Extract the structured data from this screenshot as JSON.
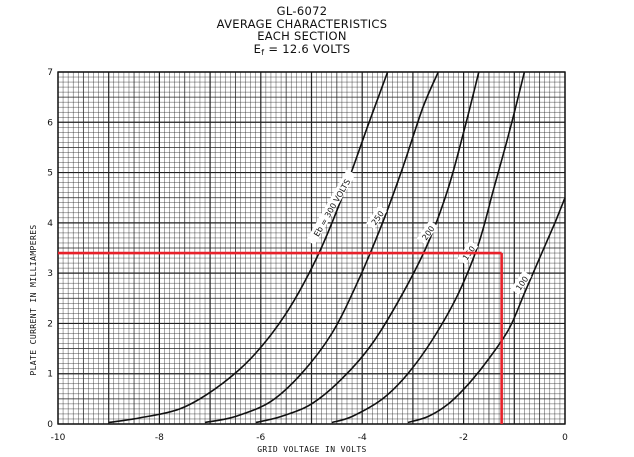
{
  "chart_data": {
    "type": "line",
    "title": "GL-6072",
    "subtitle_lines": [
      "AVERAGE CHARACTERISTICS",
      "EACH SECTION"
    ],
    "heater": {
      "main": "E",
      "sub": "f",
      "rest": " = 12.6 VOLTS"
    },
    "xlabel": "GRID VOLTAGE IN VOLTS",
    "ylabel": "PLATE CURRENT IN MILLIAMPERES",
    "xlim": [
      -10,
      0
    ],
    "ylim": [
      0,
      7
    ],
    "x_ticks": [
      "-10",
      "-8",
      "-6",
      "-4",
      "-2",
      "0"
    ],
    "y_ticks": [
      "0",
      "1",
      "2",
      "3",
      "4",
      "5",
      "6",
      "7"
    ],
    "grid": true,
    "series": [
      {
        "name": "Eb = 300 VOLTS",
        "color": "#111111",
        "x": [
          -9.0,
          -8.4,
          -7.6,
          -6.9,
          -6.2,
          -5.5,
          -4.9,
          -4.4,
          -3.9,
          -3.5
        ],
        "y": [
          0.03,
          0.12,
          0.3,
          0.7,
          1.3,
          2.2,
          3.3,
          4.5,
          5.9,
          7.0
        ]
      },
      {
        "name": "250",
        "color": "#111111",
        "x": [
          -7.1,
          -6.5,
          -5.8,
          -5.2,
          -4.6,
          -4.1,
          -3.6,
          -3.2,
          -2.8,
          -2.5
        ],
        "y": [
          0.03,
          0.15,
          0.45,
          1.0,
          1.8,
          2.8,
          4.0,
          5.1,
          6.3,
          7.0
        ]
      },
      {
        "name": "200",
        "color": "#111111",
        "x": [
          -6.1,
          -5.6,
          -5.0,
          -4.4,
          -3.8,
          -3.2,
          -2.7,
          -2.3,
          -2.0,
          -1.7
        ],
        "y": [
          0.03,
          0.15,
          0.4,
          0.9,
          1.6,
          2.6,
          3.6,
          4.7,
          5.8,
          7.0
        ]
      },
      {
        "name": "150",
        "color": "#111111",
        "x": [
          -4.6,
          -4.2,
          -3.6,
          -3.1,
          -2.6,
          -2.1,
          -1.7,
          -1.4,
          -1.1,
          -0.8
        ],
        "y": [
          0.03,
          0.15,
          0.5,
          1.0,
          1.7,
          2.6,
          3.6,
          4.7,
          5.8,
          7.0
        ]
      },
      {
        "name": "100",
        "color": "#111111",
        "x": [
          -3.1,
          -2.7,
          -2.3,
          -1.9,
          -1.5,
          -1.1,
          -0.8,
          -0.5,
          -0.2,
          0.0
        ],
        "y": [
          0.03,
          0.15,
          0.4,
          0.8,
          1.3,
          1.9,
          2.6,
          3.3,
          4.0,
          4.5
        ]
      }
    ],
    "curve_labels": [
      {
        "text": "Eb = 300 VOLTS",
        "x": -4.6,
        "y": 4.3,
        "rot": -60
      },
      {
        "text": "250",
        "x": -3.7,
        "y": 4.1,
        "rot": -55
      },
      {
        "text": "200",
        "x": -2.7,
        "y": 3.8,
        "rot": -55
      },
      {
        "text": "150",
        "x": -1.9,
        "y": 3.4,
        "rot": -55
      },
      {
        "text": "100",
        "x": -0.85,
        "y": 2.8,
        "rot": -55
      }
    ],
    "operating_point": {
      "x": -1.25,
      "y": 3.4,
      "color": "#e8212a"
    }
  }
}
